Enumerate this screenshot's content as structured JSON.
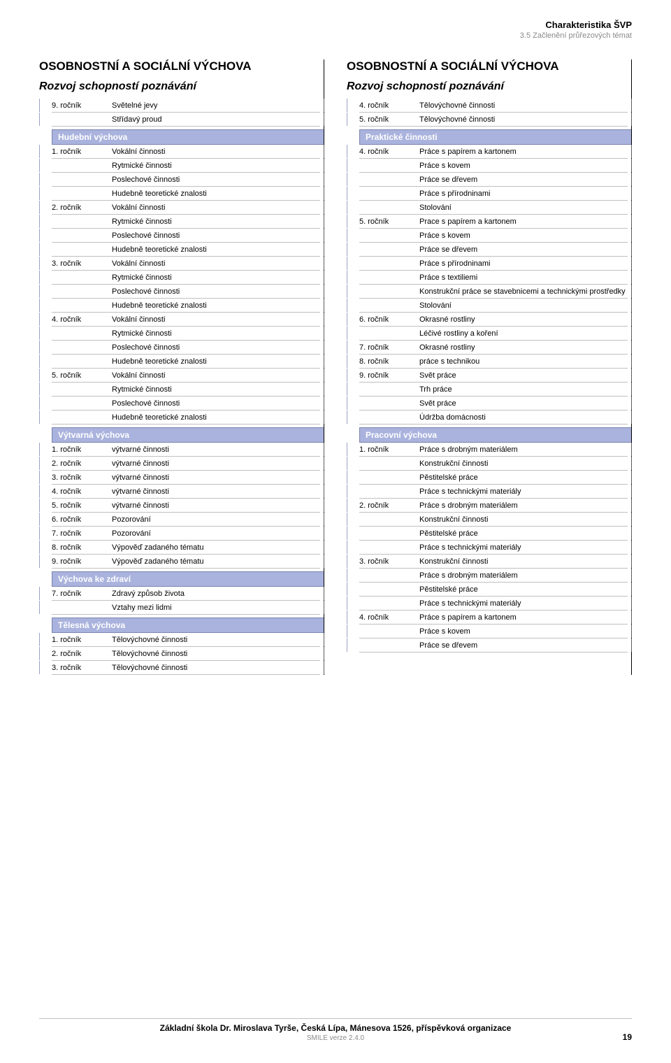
{
  "header": {
    "title": "Charakteristika ŠVP",
    "sub": "3.5 Začlenění průřezových témat"
  },
  "colors": {
    "band_bg": "#aab3dd",
    "band_border": "#7a84b0",
    "band_text": "#ffffff",
    "row_border": "#c0c0c0",
    "tick_left": "#9aa0c2",
    "tick_right": "#5c5c5c",
    "sub_text": "#8a8a8a"
  },
  "left": {
    "main": "OSOBNOSTNÍ A SOCIÁLNÍ VÝCHOVA",
    "sub": "Rozvoj schopností poznávání",
    "blocks": [
      {
        "type": "row",
        "grade": "9. ročník",
        "text": "Světelné jevy"
      },
      {
        "type": "row",
        "grade": "",
        "text": "Střídavý proud"
      },
      {
        "type": "band",
        "text": "Hudební výchova"
      },
      {
        "type": "row",
        "grade": "1. ročník",
        "text": "Vokální činnosti"
      },
      {
        "type": "row",
        "grade": "",
        "text": "Rytmické činnosti"
      },
      {
        "type": "row",
        "grade": "",
        "text": "Poslechové činnosti"
      },
      {
        "type": "row",
        "grade": "",
        "text": "Hudebně teoretické znalosti"
      },
      {
        "type": "row",
        "grade": "2. ročník",
        "text": "Vokální činnosti"
      },
      {
        "type": "row",
        "grade": "",
        "text": "Rytmické činnosti"
      },
      {
        "type": "row",
        "grade": "",
        "text": "Poslechové činnosti"
      },
      {
        "type": "row",
        "grade": "",
        "text": "Hudebně teoretické znalosti"
      },
      {
        "type": "row",
        "grade": "3. ročník",
        "text": "Vokální činnosti"
      },
      {
        "type": "row",
        "grade": "",
        "text": "Rytmické činnosti"
      },
      {
        "type": "row",
        "grade": "",
        "text": "Poslechové činnosti"
      },
      {
        "type": "row",
        "grade": "",
        "text": "Hudebně teoretické znalosti"
      },
      {
        "type": "row",
        "grade": "4. ročník",
        "text": "Vokální činnosti"
      },
      {
        "type": "row",
        "grade": "",
        "text": "Rytmické činnosti"
      },
      {
        "type": "row",
        "grade": "",
        "text": "Poslechové činnosti"
      },
      {
        "type": "row",
        "grade": "",
        "text": "Hudebně teoretické znalosti"
      },
      {
        "type": "row",
        "grade": "5. ročník",
        "text": "Vokální činnosti"
      },
      {
        "type": "row",
        "grade": "",
        "text": "Rytmické činnosti"
      },
      {
        "type": "row",
        "grade": "",
        "text": "Poslechové činnosti"
      },
      {
        "type": "row",
        "grade": "",
        "text": "Hudebně teoretické znalosti"
      },
      {
        "type": "band",
        "text": "Výtvarná výchova"
      },
      {
        "type": "row",
        "grade": "1. ročník",
        "text": "výtvarné činnosti"
      },
      {
        "type": "row",
        "grade": "2. ročník",
        "text": "výtvarné činnosti"
      },
      {
        "type": "row",
        "grade": "3. ročník",
        "text": "výtvarné činnosti"
      },
      {
        "type": "row",
        "grade": "4. ročník",
        "text": "výtvarné činnosti"
      },
      {
        "type": "row",
        "grade": "5. ročník",
        "text": "výtvarné činnosti"
      },
      {
        "type": "row",
        "grade": "6. ročník",
        "text": "Pozorování"
      },
      {
        "type": "row",
        "grade": "7. ročník",
        "text": "Pozorování"
      },
      {
        "type": "row",
        "grade": "8. ročník",
        "text": "Výpověď zadaného tématu"
      },
      {
        "type": "row",
        "grade": "9. ročník",
        "text": "Výpověď zadaného tématu"
      },
      {
        "type": "band",
        "text": "Výchova ke zdraví"
      },
      {
        "type": "row",
        "grade": "7. ročník",
        "text": "Zdravý způsob života"
      },
      {
        "type": "row",
        "grade": "",
        "text": "Vztahy mezi lidmi"
      },
      {
        "type": "band",
        "text": "Tělesná výchova"
      },
      {
        "type": "row",
        "grade": "1. ročník",
        "text": "Tělovýchovné činnosti"
      },
      {
        "type": "row",
        "grade": "2. ročník",
        "text": "Tělovýchovné činnosti"
      },
      {
        "type": "row",
        "grade": "3. ročník",
        "text": "Tělovýchovné činnosti"
      }
    ]
  },
  "right": {
    "main": "OSOBNOSTNÍ A SOCIÁLNÍ VÝCHOVA",
    "sub": "Rozvoj schopností poznávání",
    "blocks": [
      {
        "type": "row",
        "grade": "4. ročník",
        "text": "Tělovýchovné činnosti"
      },
      {
        "type": "row",
        "grade": "5. ročník",
        "text": "Tělovýchovné činnosti"
      },
      {
        "type": "band",
        "text": "Praktické činnosti"
      },
      {
        "type": "row",
        "grade": "4. ročník",
        "text": "Práce s papírem a kartonem"
      },
      {
        "type": "row",
        "grade": "",
        "text": "Práce s kovem"
      },
      {
        "type": "row",
        "grade": "",
        "text": "Práce se dřevem"
      },
      {
        "type": "row",
        "grade": "",
        "text": "Práce s přírodninami"
      },
      {
        "type": "row",
        "grade": "",
        "text": "Stolování"
      },
      {
        "type": "row",
        "grade": "5. ročník",
        "text": "Prace s papírem a kartonem"
      },
      {
        "type": "row",
        "grade": "",
        "text": "Práce s kovem"
      },
      {
        "type": "row",
        "grade": "",
        "text": "Práce se dřevem"
      },
      {
        "type": "row",
        "grade": "",
        "text": "Práce s přírodninami"
      },
      {
        "type": "row",
        "grade": "",
        "text": "Práce s textiliemi"
      },
      {
        "type": "row",
        "grade": "",
        "text": "Konstrukční práce se stavebnicemi a technickými prostředky"
      },
      {
        "type": "row",
        "grade": "",
        "text": "Stolování"
      },
      {
        "type": "row",
        "grade": "6. ročník",
        "text": "Okrasné rostliny"
      },
      {
        "type": "row",
        "grade": "",
        "text": "Léčivé rostliny a koření"
      },
      {
        "type": "row",
        "grade": "7. ročník",
        "text": "Okrasné rostliny"
      },
      {
        "type": "row",
        "grade": "8. ročník",
        "text": "práce s technikou"
      },
      {
        "type": "row",
        "grade": "9. ročník",
        "text": "Svět práce"
      },
      {
        "type": "row",
        "grade": "",
        "text": "Trh práce"
      },
      {
        "type": "row",
        "grade": "",
        "text": "Svět práce"
      },
      {
        "type": "row",
        "grade": "",
        "text": "Údržba domácnosti"
      },
      {
        "type": "band",
        "text": "Pracovní výchova"
      },
      {
        "type": "row",
        "grade": "1. ročník",
        "text": "Práce s drobným materiálem"
      },
      {
        "type": "row",
        "grade": "",
        "text": "Konstrukční činnosti"
      },
      {
        "type": "row",
        "grade": "",
        "text": "Pěstitelské práce"
      },
      {
        "type": "row",
        "grade": "",
        "text": "Práce s technickými materiály"
      },
      {
        "type": "row",
        "grade": "2. ročník",
        "text": "Práce s drobným materiálem"
      },
      {
        "type": "row",
        "grade": "",
        "text": "Konstrukční činnosti"
      },
      {
        "type": "row",
        "grade": "",
        "text": "Pěstitelské práce"
      },
      {
        "type": "row",
        "grade": "",
        "text": "Práce s technickými materiály"
      },
      {
        "type": "row",
        "grade": "3. ročník",
        "text": "Konstrukční činnosti"
      },
      {
        "type": "row",
        "grade": "",
        "text": "Práce s drobným materiálem"
      },
      {
        "type": "row",
        "grade": "",
        "text": "Pěstitelské práce"
      },
      {
        "type": "row",
        "grade": "",
        "text": "Práce s technickými materiály"
      },
      {
        "type": "row",
        "grade": "4. ročník",
        "text": "Práce s papírem a kartonem"
      },
      {
        "type": "row",
        "grade": "",
        "text": "Práce s kovem"
      },
      {
        "type": "row",
        "grade": "",
        "text": "Práce se dřevem"
      }
    ]
  },
  "footer": {
    "title": "Základní škola Dr. Miroslava Tyrše, Česká Lípa, Mánesova 1526, příspěvková organizace",
    "sub": "SMILE verze 2.4.0",
    "page": "19"
  }
}
